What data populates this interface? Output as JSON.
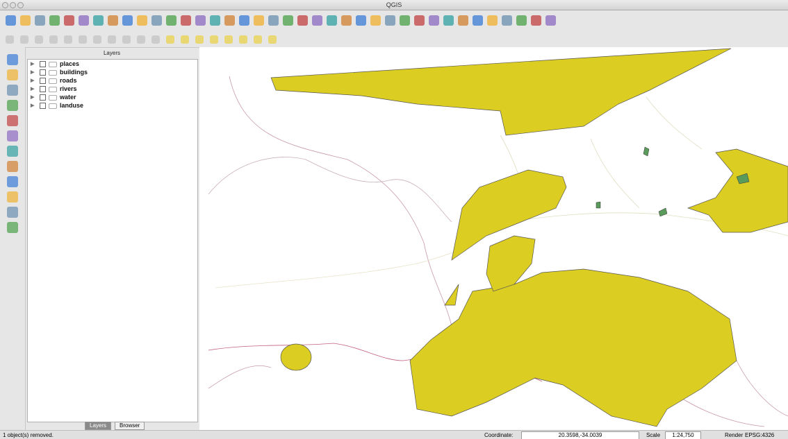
{
  "window": {
    "title": "QGIS"
  },
  "layers_panel": {
    "title": "Layers",
    "layers": [
      "places",
      "buildings",
      "roads",
      "rivers",
      "water",
      "landuse"
    ],
    "tabs": [
      "Layers",
      "Browser"
    ]
  },
  "status_bar": {
    "message": "1 object(s) removed.",
    "coordinate_label": "Coordinate:",
    "coordinate": "20.3598,-34.0039",
    "scale_label": "Scale",
    "scale": "1:24,750",
    "render_label": "Render",
    "crs": "EPSG:4326"
  }
}
